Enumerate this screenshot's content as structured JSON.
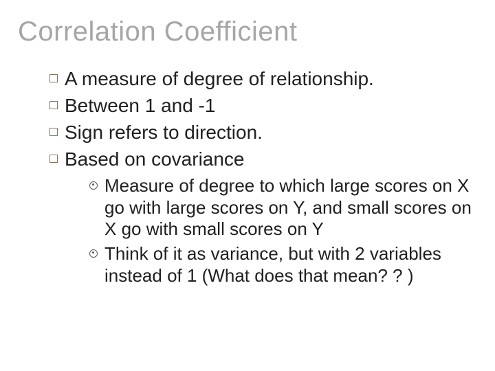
{
  "title": "Correlation Coefficient",
  "bullets": {
    "b1": "A measure of degree of relationship.",
    "b2": "Between 1 and -1",
    "b3": "Sign refers to direction.",
    "b4": "Based on covariance"
  },
  "sub_bullets": {
    "s1": "Measure of degree to which large scores on X go with large scores on Y, and small scores on X go with small scores on Y",
    "s2": "Think of it as variance, but with 2 variables instead of 1 (What does that mean? ? )"
  },
  "colors": {
    "title_color": "#a6a6a6",
    "text_color": "#202020",
    "square_bullet_border": "#8a7060",
    "circle_bullet_border": "#5a5a5a",
    "background": "#ffffff"
  },
  "typography": {
    "title_fontsize": 40,
    "level1_fontsize": 28,
    "level2_fontsize": 26,
    "font_family": "Arial"
  }
}
